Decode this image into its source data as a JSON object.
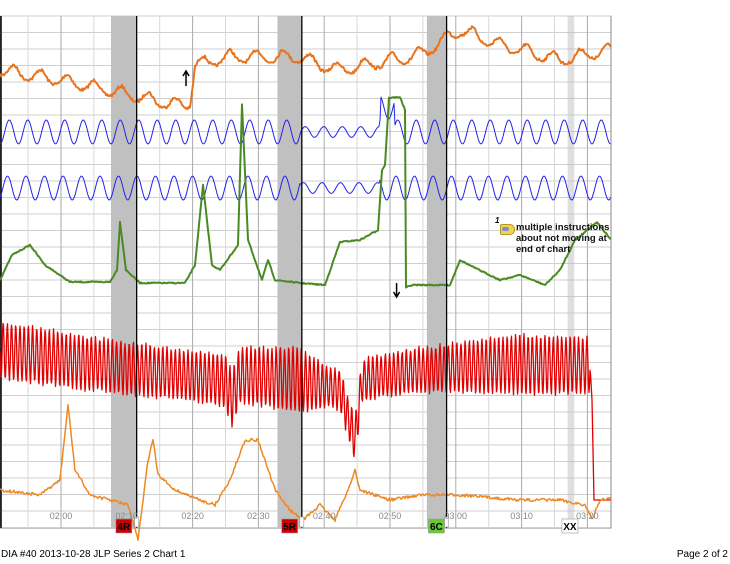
{
  "footer": {
    "chart_title": "DIA #40 2013-10-28 JLP Series 2 Chart 1",
    "page": "Page 2 of 2"
  },
  "annotation": {
    "number": "1",
    "text": "multiple instructions about not moving at end of chart",
    "icon": "note-icon"
  },
  "colors": {
    "pneumo_upper": "#e8731c",
    "pneumo_abdominal": "#2222ee",
    "eda": "#4a8a22",
    "cardio": "#e00000",
    "activity": "#ee8822",
    "question_band": "#c0c0c0",
    "relevant_marker": "#cc0000",
    "comparison_marker": "#66cc33"
  },
  "chart_data": {
    "type": "line",
    "title": "",
    "xlabel": "",
    "ylabel": "",
    "x_unit": "time mm:ss",
    "xlim": [
      "01:51",
      "03:24"
    ],
    "x_ticks": [
      "02:00",
      "02:10",
      "02:20",
      "02:30",
      "02:40",
      "02:50",
      "03:00",
      "03:10",
      "03:20"
    ],
    "grid": true,
    "series": [
      {
        "channel": "upper-respiration",
        "color": "#e8731c"
      },
      {
        "channel": "lower-respiration-1",
        "color": "#2222ee"
      },
      {
        "channel": "lower-respiration-2",
        "color": "#2222ee"
      },
      {
        "channel": "electrodermal",
        "color": "#4a8a22"
      },
      {
        "channel": "cardio",
        "color": "#e00000"
      },
      {
        "channel": "activity-sensor",
        "color": "#ee8822"
      }
    ],
    "question_markers": [
      {
        "label": "4R",
        "type": "relevant",
        "band_start": "02:07.6",
        "band_end": "02:11.5",
        "answer_line": "02:11.5"
      },
      {
        "label": "5R",
        "type": "relevant",
        "band_start": "02:32.9",
        "band_end": "02:36.6",
        "answer_line": "02:36.6"
      },
      {
        "label": "6C",
        "type": "comparison",
        "band_start": "02:55.6",
        "band_end": "02:58.5",
        "answer_line": "02:58.6"
      },
      {
        "label": "XX",
        "type": "end",
        "band_start": "03:17",
        "band_end": "03:18"
      }
    ],
    "arrows": [
      {
        "direction": "up",
        "time": "02:19"
      },
      {
        "direction": "down",
        "time": "02:51"
      }
    ]
  }
}
